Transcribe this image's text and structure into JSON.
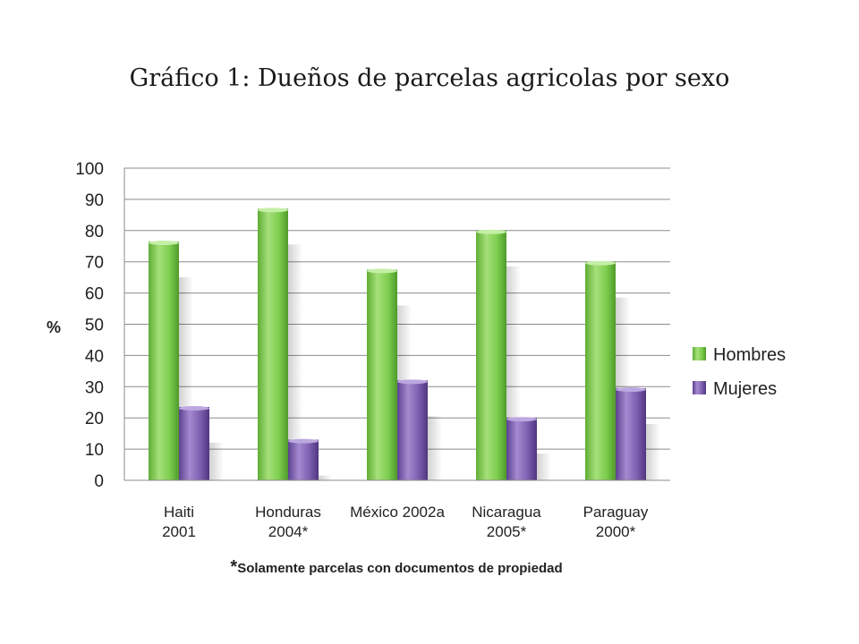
{
  "chart_data": {
    "type": "bar",
    "title": "Gráfico 1: Dueños de parcelas agricolas por sexo",
    "ylabel": "%",
    "xlabel": "",
    "ylim": [
      0,
      100
    ],
    "yticks": [
      "0",
      "10",
      "20",
      "30",
      "40",
      "50",
      "60",
      "70",
      "80",
      "90",
      "100"
    ],
    "grid": true,
    "legend_position": "right",
    "categories": [
      [
        "Haiti",
        "2001"
      ],
      [
        "Honduras",
        "2004*"
      ],
      [
        "México 2002a"
      ],
      [
        "Nicaragua",
        "2005*"
      ],
      [
        "Paraguay",
        "2000*"
      ]
    ],
    "series": [
      {
        "name": "Hombres",
        "color": "#7ccd4e",
        "values": [
          76.5,
          87,
          67.5,
          80,
          70
        ]
      },
      {
        "name": "Mujeres",
        "color": "#7d5fb0",
        "values": [
          23.5,
          13,
          32,
          20,
          29.5
        ]
      }
    ],
    "footnote": {
      "star": "*",
      "text": "Solamente parcelas con documentos de propiedad"
    }
  }
}
